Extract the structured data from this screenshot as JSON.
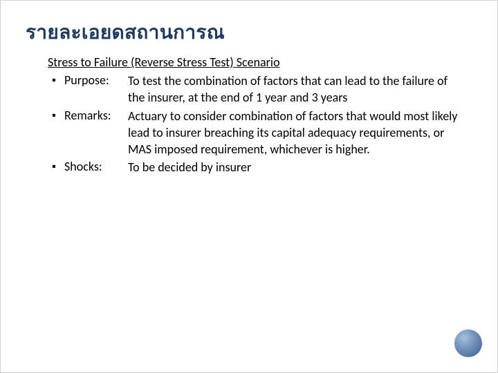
{
  "slide": {
    "title": "รายละเอยดสถานการณ",
    "scenario_title": "Stress to Failure (Reverse Stress Test) Scenario",
    "items": [
      {
        "label": "Purpose:",
        "value": "To test the combination of factors that can lead to the failure of the insurer, at the end of 1 year and 3 years"
      },
      {
        "label": "Remarks:",
        "value": "Actuary to consider combination of factors that would most likely lead to insurer breaching its capital adequacy requirements, or MAS imposed requirement, whichever is higher."
      },
      {
        "label": "Shocks:",
        "value": "To be decided by insurer"
      }
    ],
    "bullet_char": "▪"
  },
  "styles": {
    "title_color": "#1f3a5f",
    "text_color": "#000000",
    "background": "#ffffff",
    "ornament_gradient_top": "#a6bfe0",
    "ornament_gradient_mid": "#6f8fb8",
    "ornament_gradient_bottom": "#4f6f98",
    "title_fontsize": 28,
    "body_fontsize": 18
  }
}
